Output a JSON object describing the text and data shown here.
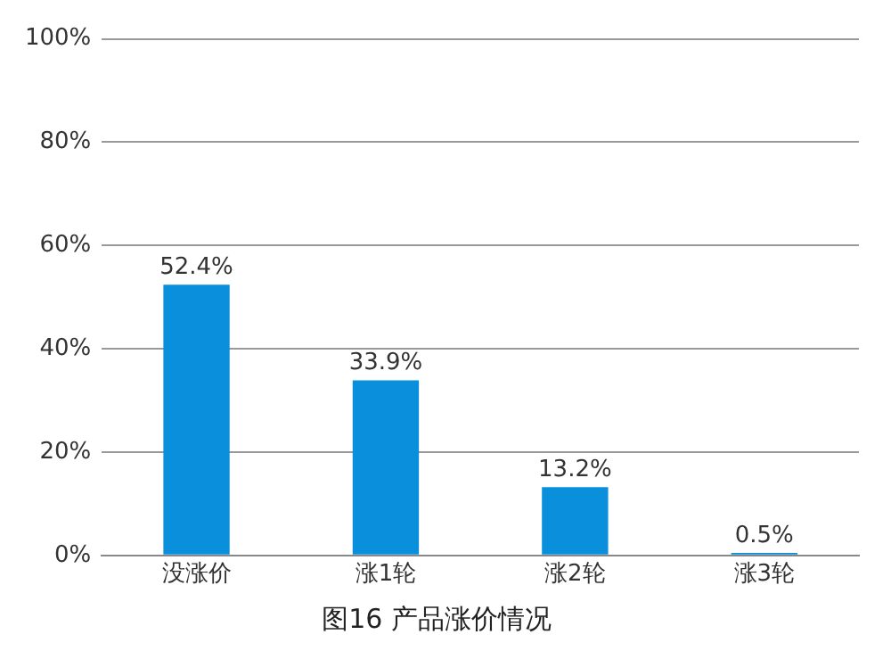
{
  "chart_data": {
    "type": "bar",
    "title": "图16 产品涨价情况",
    "categories": [
      "没涨价",
      "涨1轮",
      "涨2轮",
      "涨3轮"
    ],
    "values": [
      52.4,
      33.9,
      13.2,
      0.5
    ],
    "value_labels": [
      "52.4%",
      "33.9%",
      "13.2%",
      "0.5%"
    ],
    "color": "#0a8fdc",
    "ylim": [
      0,
      100
    ],
    "yticks": [
      {
        "value": 0,
        "label": "0%"
      },
      {
        "value": 20,
        "label": "20%"
      },
      {
        "value": 40,
        "label": "40%"
      },
      {
        "value": 60,
        "label": "60%"
      },
      {
        "value": 80,
        "label": "80%"
      },
      {
        "value": 100,
        "label": "100%"
      }
    ],
    "grid": "y",
    "legend": false
  }
}
